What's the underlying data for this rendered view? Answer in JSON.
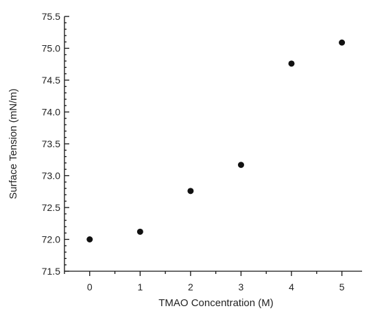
{
  "chart_data": {
    "type": "scatter",
    "title": "",
    "xlabel": "TMAO Concentration (M)",
    "ylabel": "Surface Tension (mN/m)",
    "x": [
      0,
      1,
      2,
      3,
      4,
      5
    ],
    "y": [
      72.0,
      72.12,
      72.76,
      73.17,
      74.76,
      75.09
    ],
    "xlim": [
      -0.5,
      5.4
    ],
    "ylim": [
      71.5,
      75.5
    ],
    "x_ticks": [
      0,
      1,
      2,
      3,
      4,
      5
    ],
    "x_tick_labels": [
      "0",
      "1",
      "2",
      "3",
      "4",
      "5"
    ],
    "y_ticks": [
      71.5,
      72.0,
      72.5,
      73.0,
      73.5,
      74.0,
      74.5,
      75.0,
      75.5
    ],
    "y_tick_labels": [
      "71.5",
      "72.0",
      "72.5",
      "73.0",
      "73.5",
      "74.0",
      "74.5",
      "75.0",
      "75.5"
    ],
    "grid": false,
    "legend": "none",
    "marker_color": "#111111"
  }
}
